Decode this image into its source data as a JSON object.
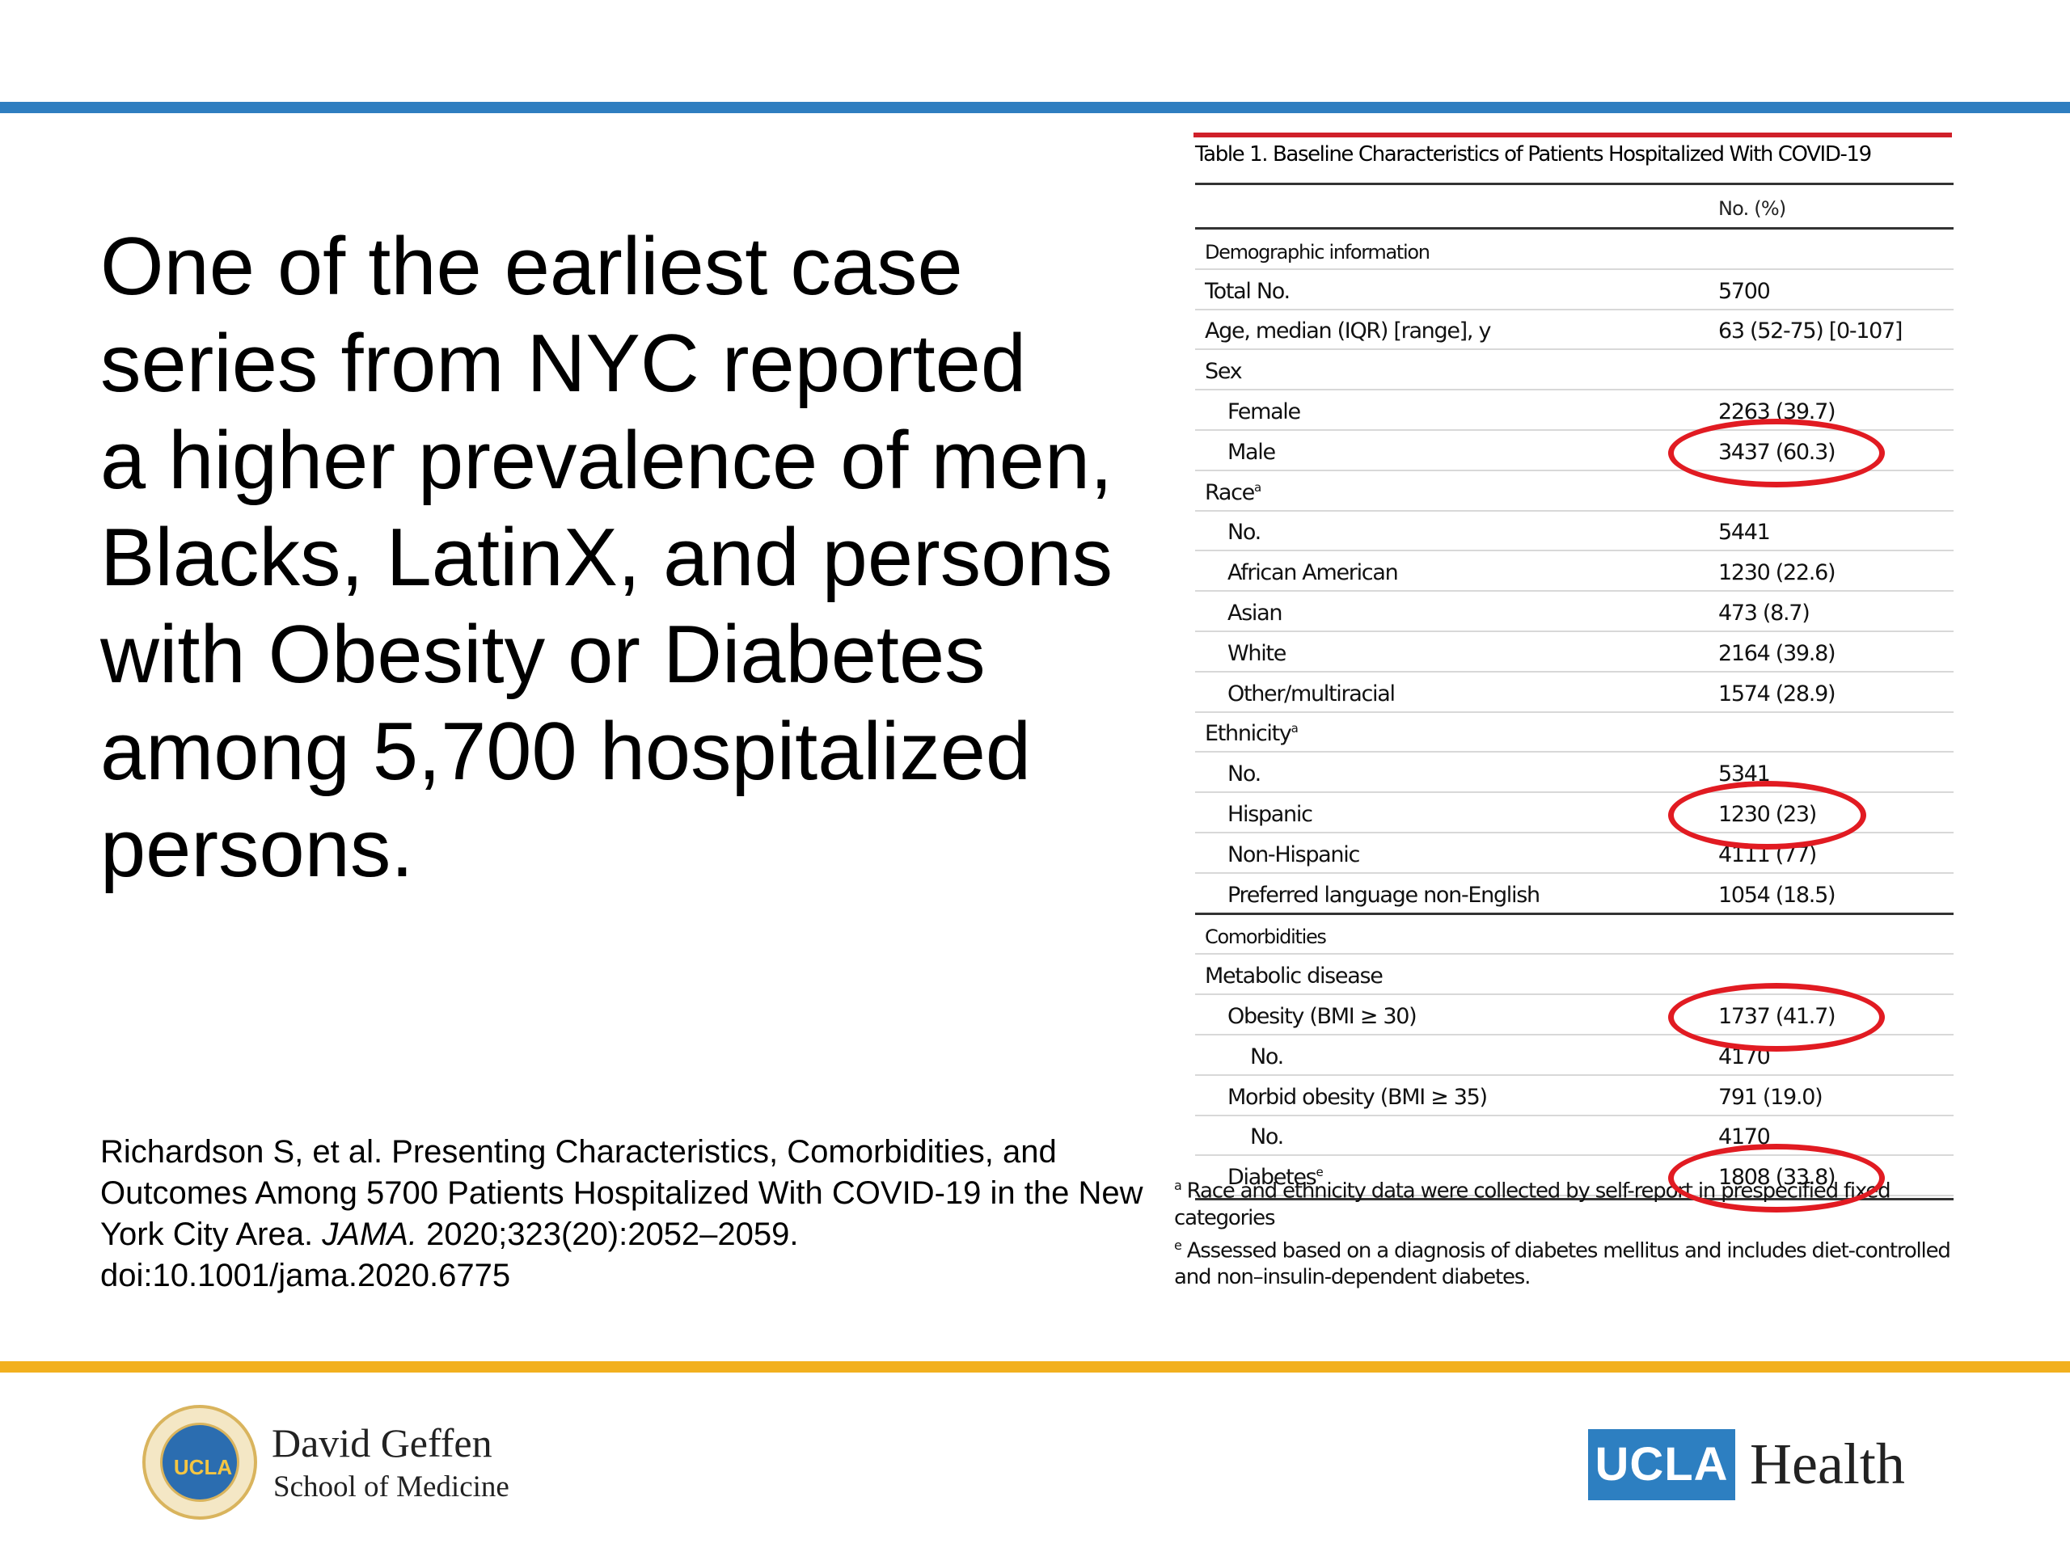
{
  "slide": {
    "headline": "One of the earliest case\nseries from NYC reported\na higher prevalence of men,\nBlacks, LatinX, and persons\nwith Obesity or Diabetes\namong 5,700 hospitalized\npersons.",
    "citation": {
      "before_journal": "Richardson S, et al. Presenting Characteristics, Comorbidities, and Outcomes Among 5700 Patients Hospitalized With COVID-19 in the New York City Area. ",
      "journal": "JAMA.",
      "after_journal": " 2020;323(20):2052–2059. doi:10.1001/jama.2020.6775"
    },
    "colors": {
      "top_rule": "#2f7ec0",
      "bottom_rule": "#f2b01e",
      "highlight": "#e11b22",
      "table_accent": "#d0202a"
    }
  },
  "table": {
    "title": "Table 1. Baseline Characteristics of Patients Hospitalized With COVID-19",
    "column_header": "No. (%)",
    "rows": [
      {
        "label": "Demographic information",
        "value": "",
        "level": 0,
        "section": true
      },
      {
        "label": "Total No.",
        "value": "5700",
        "level": 0
      },
      {
        "label": "Age, median (IQR) [range], y",
        "value": "63 (52-75) [0-107]",
        "level": 0
      },
      {
        "label": "Sex",
        "value": "",
        "level": 0
      },
      {
        "label": "Female",
        "value": "2263 (39.7)",
        "level": 1
      },
      {
        "label": "Male",
        "value": "3437 (60.3)",
        "level": 1,
        "circled": true
      },
      {
        "label": "Race",
        "sup": "a",
        "value": "",
        "level": 0
      },
      {
        "label": "No.",
        "value": "5441",
        "level": 1
      },
      {
        "label": "African American",
        "value": "1230 (22.6)",
        "level": 1
      },
      {
        "label": "Asian",
        "value": "473 (8.7)",
        "level": 1
      },
      {
        "label": "White",
        "value": "2164 (39.8)",
        "level": 1
      },
      {
        "label": "Other/multiracial",
        "value": "1574 (28.9)",
        "level": 1
      },
      {
        "label": "Ethnicity",
        "sup": "a",
        "value": "",
        "level": 0
      },
      {
        "label": "No.",
        "value": "5341",
        "level": 1
      },
      {
        "label": "Hispanic",
        "value": "1230 (23)",
        "level": 1,
        "circled": true
      },
      {
        "label": "Non-Hispanic",
        "value": "4111 (77)",
        "level": 1
      },
      {
        "label": "Preferred language non-English",
        "value": "1054 (18.5)",
        "level": 1,
        "thick": true
      },
      {
        "label": "Comorbidities",
        "value": "",
        "level": 0,
        "section": true
      },
      {
        "label": "Metabolic disease",
        "value": "",
        "level": 0
      },
      {
        "label": "Obesity (BMI ≥ 30)",
        "value": "1737 (41.7)",
        "level": 1,
        "circled": true
      },
      {
        "label": "No.",
        "value": "4170",
        "level": 2
      },
      {
        "label": "Morbid obesity (BMI ≥ 35)",
        "value": "791 (19.0)",
        "level": 1
      },
      {
        "label": "No.",
        "value": "4170",
        "level": 2
      },
      {
        "label": "Diabetes",
        "sup": "e",
        "value": "1808 (33.8)",
        "level": 1,
        "circled": true
      }
    ],
    "footnotes": [
      {
        "mark": "a",
        "text": "Race and ethnicity data were collected by self-report in prespecified fixed categories"
      },
      {
        "mark": "e",
        "text": "Assessed based on a diagnosis of diabetes mellitus and includes diet-controlled and non–insulin-dependent diabetes."
      }
    ]
  },
  "logos": {
    "left": {
      "seal_text": "UCLA",
      "name": "David Geffen",
      "subtitle": "School of Medicine"
    },
    "right": {
      "box_text": "UCLA",
      "word": "Health"
    }
  }
}
